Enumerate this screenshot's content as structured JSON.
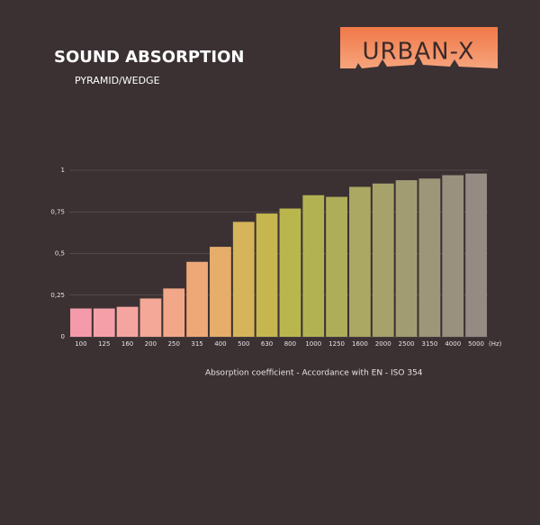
{
  "chart_data": {
    "type": "bar",
    "title": "SOUND ABSORPTION",
    "subtitle": "PYRAMID/WEDGE",
    "logo": "URBAN-X",
    "x_unit": "(Hz)",
    "categories": [
      "100",
      "125",
      "160",
      "200",
      "250",
      "315",
      "400",
      "500",
      "630",
      "800",
      "1000",
      "1250",
      "1600",
      "2000",
      "2500",
      "3150",
      "4000",
      "5000"
    ],
    "series": [
      {
        "name": "Absorption coefficient - Accordance with EN - ISO 354",
        "values": [
          0.17,
          0.17,
          0.18,
          0.23,
          0.29,
          0.45,
          0.54,
          0.69,
          0.74,
          0.77,
          0.85,
          0.84,
          0.9,
          0.92,
          0.94,
          0.95,
          0.97,
          0.98
        ],
        "colors": [
          "#f59aaa",
          "#f5a0a8",
          "#f4a5a0",
          "#f3a898",
          "#f2a888",
          "#eea878",
          "#e6ae6a",
          "#d6b45a",
          "#c6b650",
          "#bab64e",
          "#b2b253",
          "#aeae5a",
          "#aaa862",
          "#a6a26a",
          "#a29c72",
          "#9e9678",
          "#9a907e",
          "#968a84"
        ]
      }
    ],
    "ylim": [
      0,
      1
    ],
    "yticks": [
      0,
      {
        "value": 0.25,
        "label": "0,25"
      },
      {
        "value": 0.5,
        "label": "0,5"
      },
      {
        "value": 0.75,
        "label": "0,75"
      },
      1
    ],
    "grid": true
  }
}
